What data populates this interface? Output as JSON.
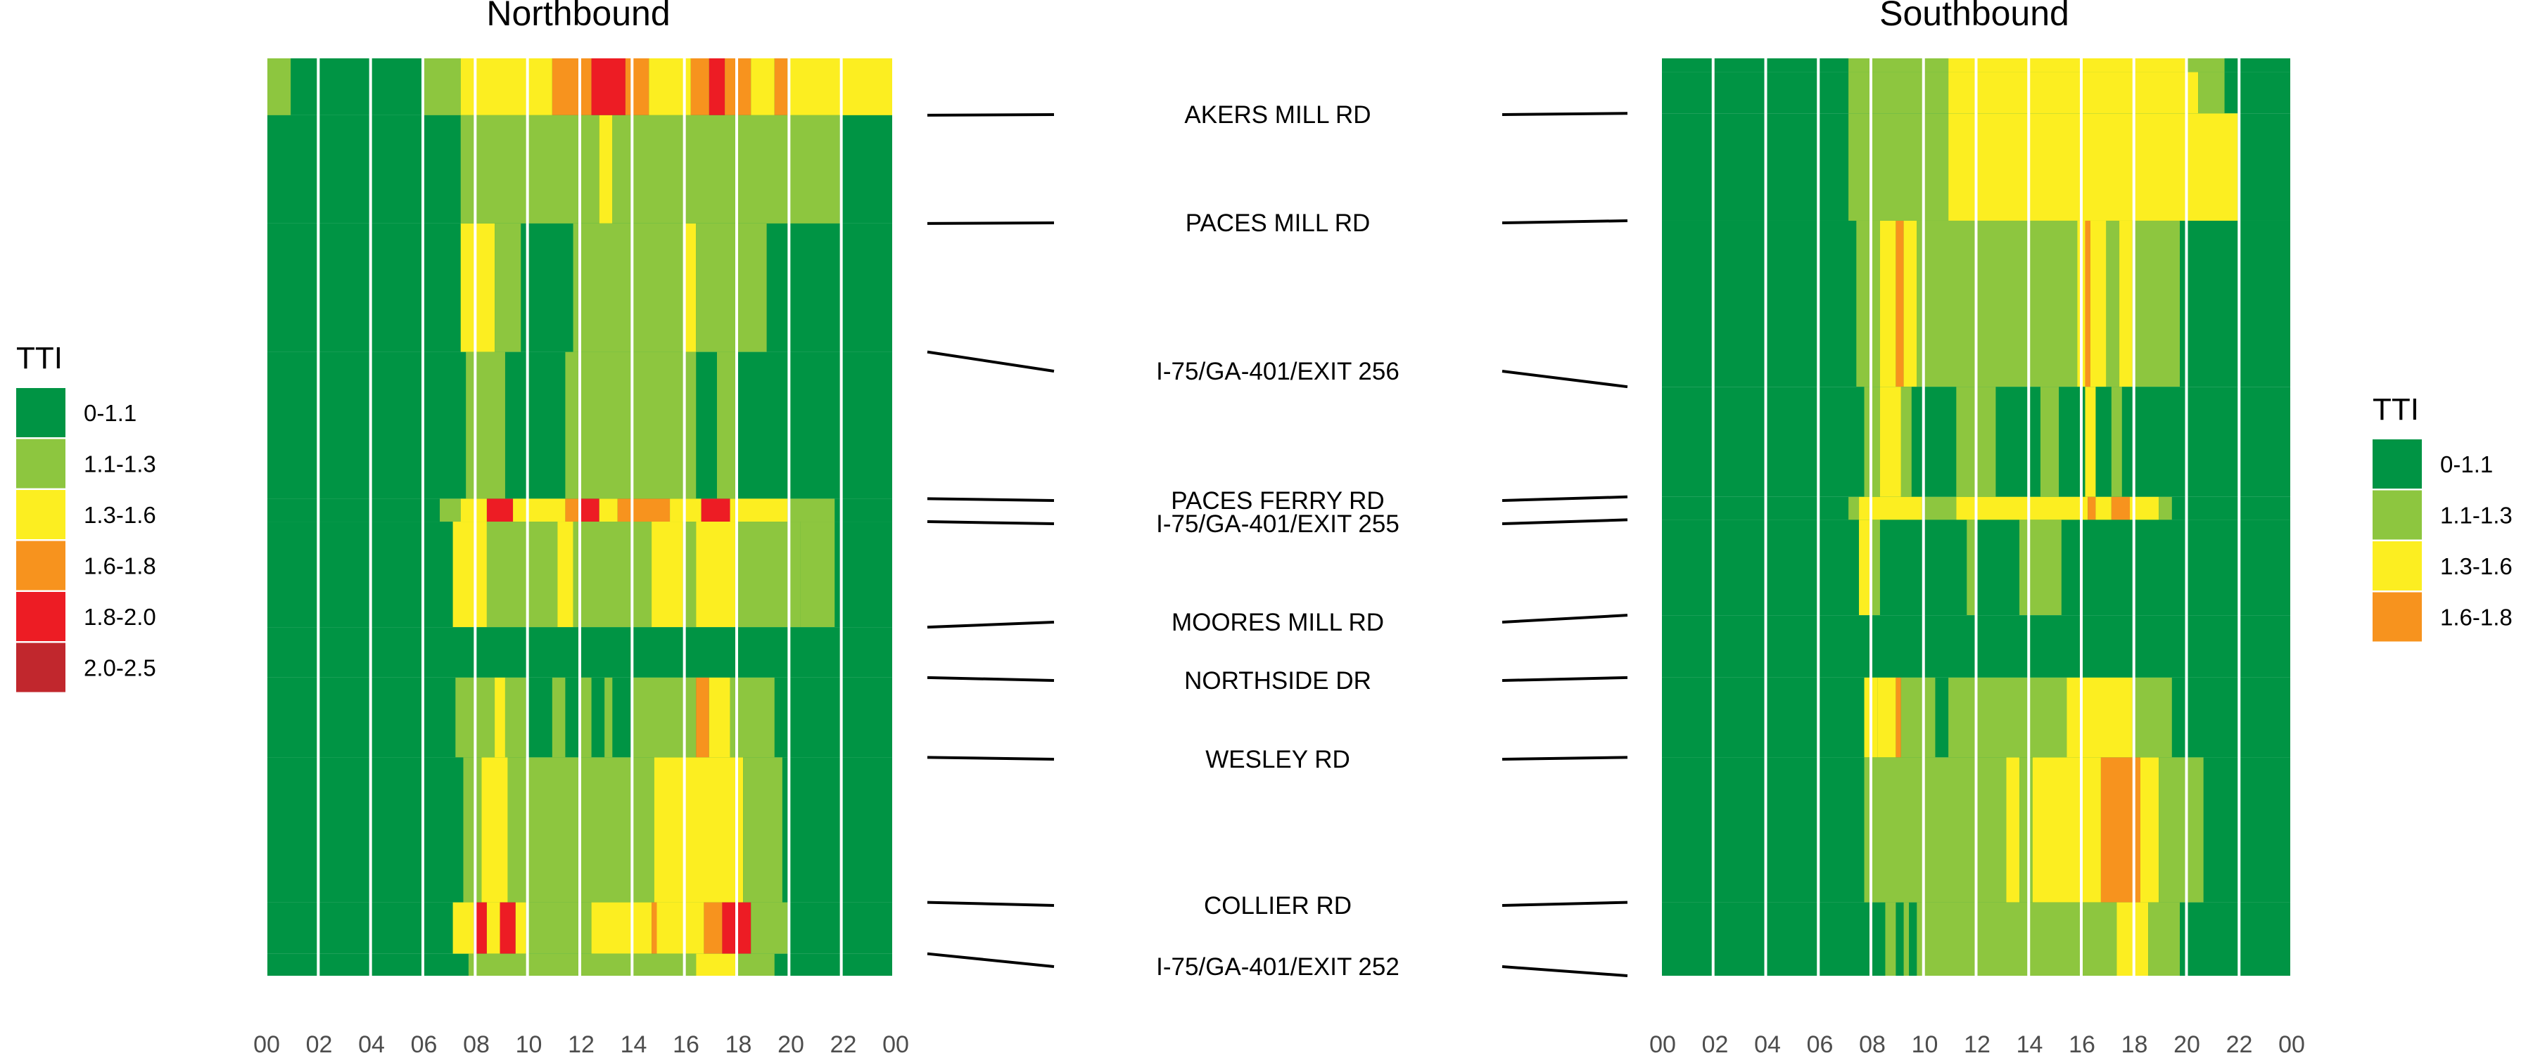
{
  "chart_data": {
    "type": "heatmap",
    "panels": [
      {
        "title": "Northbound"
      },
      {
        "title": "Southbound"
      }
    ],
    "x_unit": "hour",
    "x_ticks": [
      "00",
      "02",
      "04",
      "06",
      "08",
      "10",
      "12",
      "14",
      "16",
      "18",
      "20",
      "22",
      "00"
    ],
    "xlim": [
      0,
      24
    ],
    "roads": [
      {
        "name": "AKERS MILL RD",
        "nb_pos": 0.062,
        "sb_pos": 0.06
      },
      {
        "name": "PACES MILL RD",
        "nb_pos": 0.18,
        "sb_pos": 0.177
      },
      {
        "name": "I-75/GA-401/EXIT 256",
        "nb_pos": 0.32,
        "sb_pos": 0.358
      },
      {
        "name": "PACES FERRY RD",
        "nb_pos": 0.48,
        "sb_pos": 0.478
      },
      {
        "name": "I-75/GA-401/EXIT 255",
        "nb_pos": 0.505,
        "sb_pos": 0.503
      },
      {
        "name": "MOORES MILL RD",
        "nb_pos": 0.62,
        "sb_pos": 0.607
      },
      {
        "name": "NORTHSIDE DR",
        "nb_pos": 0.675,
        "sb_pos": 0.675
      },
      {
        "name": "WESLEY RD",
        "nb_pos": 0.762,
        "sb_pos": 0.762
      },
      {
        "name": "COLLIER RD",
        "nb_pos": 0.92,
        "sb_pos": 0.92
      },
      {
        "name": "I-75/GA-401/EXIT 252",
        "nb_pos": 0.976,
        "sb_pos": 1.0
      }
    ],
    "legends": [
      {
        "title": "TTI",
        "placement": "left",
        "entries": [
          {
            "label": "0-1.1",
            "color": "#009444"
          },
          {
            "label": "1.1-1.3",
            "color": "#8dc63f"
          },
          {
            "label": "1.3-1.6",
            "color": "#fcee21"
          },
          {
            "label": "1.6-1.8",
            "color": "#f7931e"
          },
          {
            "label": "1.8-2.0",
            "color": "#ed1c24"
          },
          {
            "label": "2.0-2.5",
            "color": "#c1272d"
          }
        ]
      },
      {
        "title": "TTI",
        "placement": "right",
        "entries": [
          {
            "label": "0-1.1",
            "color": "#009444"
          },
          {
            "label": "1.1-1.3",
            "color": "#8dc63f"
          },
          {
            "label": "1.3-1.6",
            "color": "#fcee21"
          },
          {
            "label": "1.6-1.8",
            "color": "#f7931e"
          }
        ]
      }
    ],
    "grid_hours": [
      0,
      2,
      4,
      6,
      8,
      10,
      12,
      14,
      16,
      18,
      20,
      22
    ],
    "northbound_rows": [
      {
        "segment": [
          0.0,
          0.062
        ],
        "base": 0,
        "runs": [
          [
            0.0,
            1.0,
            1
          ],
          [
            6.0,
            7.5,
            1
          ],
          [
            7.5,
            11.0,
            2
          ],
          [
            11.0,
            12.5,
            3
          ],
          [
            12.5,
            13.8,
            4
          ],
          [
            13.8,
            14.7,
            3
          ],
          [
            14.7,
            16.3,
            2
          ],
          [
            16.3,
            17.0,
            3
          ],
          [
            17.0,
            17.6,
            4
          ],
          [
            17.6,
            18.6,
            3
          ],
          [
            18.6,
            19.5,
            2
          ],
          [
            19.5,
            20.0,
            3
          ],
          [
            20.0,
            21.0,
            2
          ],
          [
            21.0,
            24.0,
            2
          ]
        ]
      },
      {
        "segment": [
          0.062,
          0.18
        ],
        "base": 0,
        "runs": [
          [
            7.5,
            12.8,
            1
          ],
          [
            12.8,
            13.3,
            2
          ],
          [
            13.3,
            22.0,
            1
          ]
        ]
      },
      {
        "segment": [
          0.18,
          0.32
        ],
        "base": 0,
        "runs": [
          [
            7.5,
            8.8,
            2
          ],
          [
            8.8,
            9.8,
            1
          ],
          [
            11.8,
            16.0,
            1
          ],
          [
            16.0,
            16.5,
            2
          ],
          [
            16.5,
            19.2,
            1
          ]
        ]
      },
      {
        "segment": [
          0.32,
          0.48
        ],
        "base": 0,
        "runs": [
          [
            7.7,
            9.2,
            1
          ],
          [
            11.5,
            16.5,
            1
          ],
          [
            17.3,
            18.0,
            1
          ]
        ]
      },
      {
        "segment": [
          0.48,
          0.505
        ],
        "base": 0,
        "runs": [
          [
            6.7,
            7.5,
            1
          ],
          [
            7.5,
            8.5,
            2
          ],
          [
            8.5,
            9.5,
            4
          ],
          [
            9.5,
            11.5,
            2
          ],
          [
            11.5,
            12.0,
            3
          ],
          [
            12.0,
            12.8,
            4
          ],
          [
            12.8,
            13.5,
            2
          ],
          [
            13.5,
            15.5,
            3
          ],
          [
            15.5,
            16.7,
            2
          ],
          [
            16.7,
            17.8,
            4
          ],
          [
            17.8,
            20.0,
            2
          ],
          [
            20.0,
            21.8,
            1
          ]
        ]
      },
      {
        "segment": [
          0.505,
          0.62
        ],
        "base": 0,
        "runs": [
          [
            7.2,
            8.5,
            2
          ],
          [
            8.5,
            11.2,
            1
          ],
          [
            11.2,
            11.8,
            2
          ],
          [
            11.8,
            14.8,
            1
          ],
          [
            14.8,
            16.0,
            2
          ],
          [
            16.0,
            16.5,
            1
          ],
          [
            16.5,
            18.0,
            2
          ],
          [
            18.0,
            20.5,
            1
          ],
          [
            20.5,
            21.8,
            1
          ]
        ]
      },
      {
        "segment": [
          0.62,
          0.675
        ],
        "base": 0,
        "runs": []
      },
      {
        "segment": [
          0.675,
          0.762
        ],
        "base": 0,
        "runs": [
          [
            7.3,
            8.8,
            1
          ],
          [
            8.8,
            9.2,
            2
          ],
          [
            9.2,
            10.0,
            1
          ],
          [
            11.0,
            11.5,
            1
          ],
          [
            12.0,
            12.5,
            1
          ],
          [
            13.0,
            13.3,
            1
          ],
          [
            14.0,
            16.5,
            1
          ],
          [
            16.5,
            17.0,
            3
          ],
          [
            17.0,
            17.8,
            2
          ],
          [
            17.8,
            19.5,
            1
          ]
        ]
      },
      {
        "segment": [
          0.762,
          0.92
        ],
        "base": 0,
        "runs": [
          [
            7.6,
            8.3,
            1
          ],
          [
            8.3,
            9.3,
            2
          ],
          [
            9.3,
            14.9,
            1
          ],
          [
            14.9,
            18.3,
            2
          ],
          [
            18.3,
            19.8,
            1
          ]
        ]
      },
      {
        "segment": [
          0.92,
          0.976
        ],
        "base": 0,
        "runs": [
          [
            7.2,
            8.0,
            2
          ],
          [
            8.0,
            8.5,
            4
          ],
          [
            8.5,
            9.0,
            2
          ],
          [
            9.0,
            9.6,
            4
          ],
          [
            9.6,
            10.0,
            2
          ],
          [
            10.0,
            12.5,
            1
          ],
          [
            12.5,
            14.8,
            2
          ],
          [
            14.8,
            15.0,
            3
          ],
          [
            15.0,
            16.8,
            2
          ],
          [
            16.8,
            17.5,
            3
          ],
          [
            17.5,
            18.6,
            4
          ],
          [
            18.6,
            20.0,
            1
          ]
        ]
      },
      {
        "segment": [
          0.976,
          1.0
        ],
        "base": 0,
        "runs": [
          [
            7.8,
            16.5,
            1
          ],
          [
            16.5,
            18.0,
            2
          ],
          [
            18.0,
            19.5,
            1
          ]
        ]
      }
    ],
    "southbound_rows": [
      {
        "segment": [
          0.0,
          0.015
        ],
        "base": 0,
        "runs": [
          [
            7.2,
            11.0,
            1
          ],
          [
            11.0,
            20.0,
            2
          ],
          [
            20.0,
            21.5,
            1
          ]
        ]
      },
      {
        "segment": [
          0.015,
          0.06
        ],
        "base": 0,
        "runs": [
          [
            7.2,
            11.0,
            1
          ],
          [
            11.0,
            20.5,
            2
          ],
          [
            20.5,
            21.5,
            1
          ]
        ]
      },
      {
        "segment": [
          0.06,
          0.177
        ],
        "base": 0,
        "runs": [
          [
            7.2,
            11.0,
            1
          ],
          [
            11.0,
            22.0,
            2
          ]
        ]
      },
      {
        "segment": [
          0.177,
          0.358
        ],
        "base": 0,
        "runs": [
          [
            7.5,
            8.4,
            1
          ],
          [
            8.4,
            9.0,
            2
          ],
          [
            9.0,
            9.3,
            3
          ],
          [
            9.3,
            9.8,
            2
          ],
          [
            9.8,
            15.9,
            1
          ],
          [
            15.9,
            16.2,
            2
          ],
          [
            16.2,
            16.4,
            3
          ],
          [
            16.4,
            17.0,
            2
          ],
          [
            17.0,
            17.5,
            1
          ],
          [
            17.5,
            18.0,
            2
          ],
          [
            18.0,
            19.8,
            1
          ]
        ]
      },
      {
        "segment": [
          0.358,
          0.478
        ],
        "base": 0,
        "runs": [
          [
            7.8,
            8.4,
            1
          ],
          [
            8.4,
            9.2,
            2
          ],
          [
            9.2,
            9.6,
            1
          ],
          [
            11.3,
            12.8,
            1
          ],
          [
            14.5,
            15.2,
            1
          ],
          [
            16.2,
            16.6,
            2
          ],
          [
            17.2,
            17.6,
            1
          ]
        ]
      },
      {
        "segment": [
          0.478,
          0.503
        ],
        "base": 0,
        "runs": [
          [
            7.2,
            7.6,
            1
          ],
          [
            7.6,
            10.0,
            2
          ],
          [
            10.0,
            11.3,
            1
          ],
          [
            11.3,
            16.3,
            2
          ],
          [
            16.3,
            16.6,
            3
          ],
          [
            16.6,
            17.2,
            2
          ],
          [
            17.2,
            17.9,
            3
          ],
          [
            17.9,
            19.0,
            2
          ],
          [
            19.0,
            19.5,
            1
          ]
        ]
      },
      {
        "segment": [
          0.503,
          0.607
        ],
        "base": 0,
        "runs": [
          [
            7.6,
            8.0,
            2
          ],
          [
            8.0,
            8.4,
            1
          ],
          [
            11.7,
            12.0,
            1
          ],
          [
            13.7,
            15.3,
            1
          ]
        ]
      },
      {
        "segment": [
          0.607,
          0.675
        ],
        "base": 0,
        "runs": []
      },
      {
        "segment": [
          0.675,
          0.762
        ],
        "base": 0,
        "runs": [
          [
            7.8,
            8.3,
            2
          ],
          [
            8.3,
            9.0,
            2
          ],
          [
            9.0,
            9.2,
            3
          ],
          [
            9.2,
            10.5,
            1
          ],
          [
            11.0,
            15.5,
            1
          ],
          [
            15.5,
            18.0,
            2
          ],
          [
            18.0,
            19.5,
            1
          ]
        ]
      },
      {
        "segment": [
          0.762,
          0.92
        ],
        "base": 0,
        "runs": [
          [
            7.8,
            13.2,
            1
          ],
          [
            13.2,
            13.7,
            2
          ],
          [
            13.7,
            14.2,
            1
          ],
          [
            14.2,
            16.8,
            2
          ],
          [
            16.8,
            18.3,
            3
          ],
          [
            18.3,
            19.0,
            2
          ],
          [
            19.0,
            20.7,
            1
          ]
        ]
      },
      {
        "segment": [
          0.92,
          1.0
        ],
        "base": 0,
        "runs": [
          [
            8.6,
            9.0,
            1
          ],
          [
            9.3,
            9.5,
            1
          ],
          [
            9.8,
            17.4,
            1
          ],
          [
            17.4,
            18.6,
            2
          ],
          [
            18.6,
            19.8,
            1
          ]
        ]
      }
    ]
  }
}
